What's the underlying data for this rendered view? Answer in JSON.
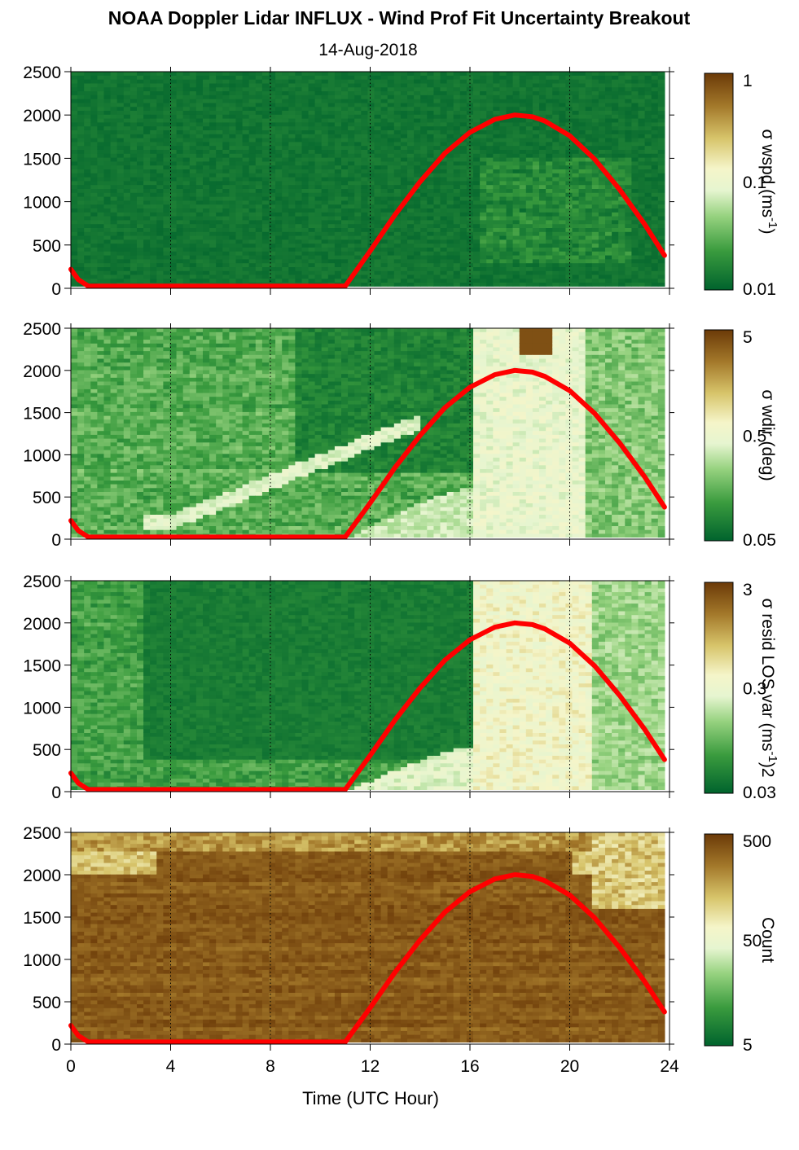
{
  "chart_data": [
    {
      "type": "heatmap",
      "title": "NOAA Doppler Lidar INFLUX - Wind Prof Fit Uncertainty Breakout",
      "subtitle": "14-Aug-2018",
      "xlabel": "",
      "xlim": [
        0,
        24
      ],
      "ylim": [
        0,
        2500
      ],
      "yticks": [
        0,
        500,
        1000,
        1500,
        2000,
        2500
      ],
      "colorbar": {
        "label": "σ wspd (ms-1)",
        "label_main": "σ wspd (ms",
        "label_sup": "-1",
        "label_end": ")",
        "ticks": [
          "1",
          "0.1",
          "0.01"
        ],
        "scale": "log"
      },
      "field": "wspd",
      "overlay": {
        "name": "",
        "color": "#ff0000"
      }
    },
    {
      "type": "heatmap",
      "xlim": [
        0,
        24
      ],
      "ylim": [
        0,
        2500
      ],
      "yticks": [
        0,
        500,
        1000,
        1500,
        2000,
        2500
      ],
      "colorbar": {
        "label": "σ wdir (deg)",
        "label_main": "σ wdir (deg)",
        "label_sup": "",
        "label_end": "",
        "ticks": [
          "5",
          "0.5",
          "0.05"
        ],
        "scale": "log"
      },
      "field": "wdir",
      "overlay": {
        "name": "",
        "color": "#ff0000"
      }
    },
    {
      "type": "heatmap",
      "xlim": [
        0,
        24
      ],
      "ylim": [
        0,
        2500
      ],
      "yticks": [
        0,
        500,
        1000,
        1500,
        2000,
        2500
      ],
      "colorbar": {
        "label": "σ resid LOS var (ms-1)2",
        "label_main": "σ resid LOS var (ms",
        "label_sup": "-1",
        "label_end": ")2",
        "ticks": [
          "3",
          "0.3",
          "0.03"
        ],
        "scale": "log"
      },
      "field": "resid",
      "overlay": {
        "name": "",
        "color": "#ff0000"
      }
    },
    {
      "type": "heatmap",
      "xlabel": "Time (UTC Hour)",
      "xlim": [
        0,
        24
      ],
      "xticks": [
        0,
        4,
        8,
        12,
        16,
        20,
        24
      ],
      "ylim": [
        0,
        2500
      ],
      "yticks": [
        0,
        500,
        1000,
        1500,
        2000,
        2500
      ],
      "colorbar": {
        "label": "Count",
        "label_main": "Count",
        "label_sup": "",
        "label_end": "",
        "ticks": [
          "500",
          "50",
          "5"
        ],
        "scale": "log"
      },
      "field": "count",
      "overlay": {
        "name": "",
        "color": "#ff0000"
      }
    }
  ],
  "solar_curve": {
    "x": [
      0,
      0.3,
      0.7,
      11.0,
      12,
      13,
      14,
      15,
      16,
      17,
      17.8,
      18.5,
      19,
      20,
      21,
      22,
      23,
      23.8
    ],
    "y": [
      220,
      100,
      25,
      25,
      430,
      850,
      1230,
      1560,
      1800,
      1950,
      2000,
      1980,
      1930,
      1760,
      1490,
      1140,
      740,
      380
    ]
  },
  "colormap": [
    "#00632d",
    "#3a9b3e",
    "#96d27f",
    "#e6f5d0",
    "#f5f5c9",
    "#d7c46a",
    "#a3782a",
    "#6b3a08"
  ],
  "colors": {
    "curve": "#ff0000",
    "grid": "#000000"
  }
}
